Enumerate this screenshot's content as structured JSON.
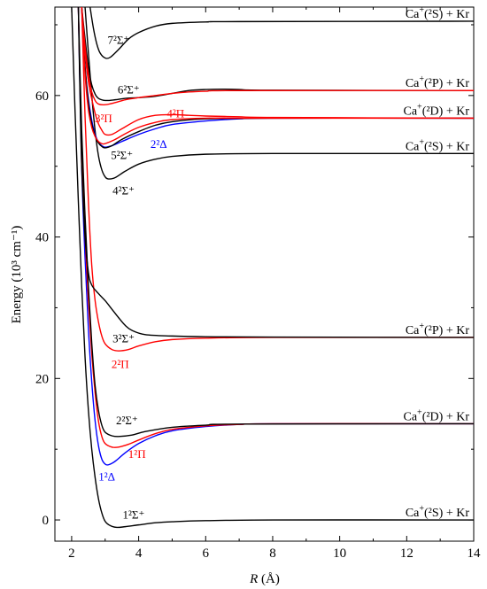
{
  "chart_data": {
    "type": "line",
    "xlabel_var": "R",
    "xlabel_unit": " (Å)",
    "ylabel": "Energy (10³ cm⁻¹)",
    "xlim": [
      1.5,
      14
    ],
    "ylim": [
      -3,
      72.5
    ],
    "xticks": [
      2,
      4,
      6,
      8,
      10,
      12,
      14
    ],
    "yticks": [
      0,
      20,
      40,
      60
    ],
    "colors": {
      "sigma": "#000000",
      "pi": "#ff0000",
      "delta": "#0000ff"
    },
    "asymptotes": [
      {
        "ion": "Ca",
        "state": "(²S) + Kr",
        "y": 0
      },
      {
        "ion": "Ca",
        "state": "(²D) + Kr",
        "y": 13.6
      },
      {
        "ion": "Ca",
        "state": "(²P) + Kr",
        "y": 25.8
      },
      {
        "ion": "Ca",
        "state": "(²S) + Kr",
        "y": 51.8
      },
      {
        "ion": "Ca",
        "state": "(²D) + Kr",
        "y": 56.8
      },
      {
        "ion": "Ca",
        "state": "(²P) + Kr",
        "y": 60.7
      },
      {
        "ion": "Ca",
        "state": "(²S) + Kr",
        "y": 70.5
      }
    ],
    "series": [
      {
        "name": "1²Σ⁺",
        "color": "sigma",
        "points": [
          [
            2.0,
            72.5
          ],
          [
            2.1,
            58
          ],
          [
            2.2,
            45
          ],
          [
            2.3,
            33
          ],
          [
            2.4,
            23
          ],
          [
            2.5,
            15.5
          ],
          [
            2.6,
            10
          ],
          [
            2.7,
            6
          ],
          [
            2.8,
            3
          ],
          [
            2.9,
            1
          ],
          [
            3.0,
            -0.2
          ],
          [
            3.15,
            -0.8
          ],
          [
            3.35,
            -1.05
          ],
          [
            3.6,
            -0.95
          ],
          [
            4,
            -0.7
          ],
          [
            4.5,
            -0.4
          ],
          [
            5,
            -0.25
          ],
          [
            6,
            -0.1
          ],
          [
            8,
            0
          ],
          [
            14,
            0
          ]
        ]
      },
      {
        "name": "1²Δ",
        "color": "delta",
        "points": [
          [
            2.2,
            72.5
          ],
          [
            2.3,
            50
          ],
          [
            2.4,
            37
          ],
          [
            2.5,
            27
          ],
          [
            2.6,
            19.5
          ],
          [
            2.7,
            14
          ],
          [
            2.8,
            10.5
          ],
          [
            2.9,
            8.6
          ],
          [
            3.0,
            7.9
          ],
          [
            3.1,
            7.8
          ],
          [
            3.3,
            8.3
          ],
          [
            3.6,
            9.5
          ],
          [
            4,
            10.8
          ],
          [
            4.5,
            11.9
          ],
          [
            5,
            12.6
          ],
          [
            6,
            13.2
          ],
          [
            7,
            13.5
          ],
          [
            8,
            13.6
          ],
          [
            14,
            13.6
          ]
        ]
      },
      {
        "name": "1²Π",
        "color": "pi",
        "points": [
          [
            2.2,
            72.5
          ],
          [
            2.3,
            52
          ],
          [
            2.4,
            40
          ],
          [
            2.5,
            31
          ],
          [
            2.6,
            23.5
          ],
          [
            2.7,
            18
          ],
          [
            2.8,
            14
          ],
          [
            2.9,
            11.8
          ],
          [
            3.0,
            10.8
          ],
          [
            3.2,
            10.3
          ],
          [
            3.4,
            10.3
          ],
          [
            3.7,
            10.7
          ],
          [
            4,
            11.3
          ],
          [
            4.5,
            12.2
          ],
          [
            5,
            12.8
          ],
          [
            6,
            13.3
          ],
          [
            7,
            13.5
          ],
          [
            8,
            13.6
          ],
          [
            14,
            13.6
          ]
        ]
      },
      {
        "name": "2²Σ⁺",
        "color": "sigma",
        "points": [
          [
            2.2,
            72.5
          ],
          [
            2.3,
            55
          ],
          [
            2.4,
            43
          ],
          [
            2.5,
            33
          ],
          [
            2.6,
            25
          ],
          [
            2.7,
            19
          ],
          [
            2.8,
            15.5
          ],
          [
            2.9,
            13.4
          ],
          [
            3.0,
            12.4
          ],
          [
            3.2,
            11.9
          ],
          [
            3.4,
            11.8
          ],
          [
            3.8,
            12
          ],
          [
            4.2,
            12.5
          ],
          [
            5,
            13.1
          ],
          [
            6,
            13.4
          ],
          [
            7,
            13.55
          ],
          [
            14,
            13.6
          ]
        ]
      },
      {
        "name": "2²Π",
        "color": "pi",
        "points": [
          [
            2.3,
            72.5
          ],
          [
            2.4,
            57
          ],
          [
            2.5,
            45
          ],
          [
            2.6,
            36
          ],
          [
            2.7,
            31
          ],
          [
            2.8,
            28
          ],
          [
            2.9,
            26
          ],
          [
            3.0,
            24.9
          ],
          [
            3.2,
            24.1
          ],
          [
            3.4,
            23.9
          ],
          [
            3.7,
            24.1
          ],
          [
            4,
            24.6
          ],
          [
            4.5,
            25.2
          ],
          [
            5,
            25.5
          ],
          [
            6,
            25.7
          ],
          [
            8,
            25.8
          ],
          [
            14,
            25.8
          ]
        ]
      },
      {
        "name": "3²Σ⁺",
        "color": "sigma",
        "points": [
          [
            2.2,
            72.5
          ],
          [
            2.25,
            60
          ],
          [
            2.3,
            50
          ],
          [
            2.4,
            40
          ],
          [
            2.5,
            35
          ],
          [
            2.6,
            33.2
          ],
          [
            2.8,
            32
          ],
          [
            3.0,
            31
          ],
          [
            3.2,
            29.8
          ],
          [
            3.4,
            28.6
          ],
          [
            3.6,
            27.5
          ],
          [
            3.8,
            26.8
          ],
          [
            4.2,
            26.2
          ],
          [
            5,
            26
          ],
          [
            6,
            25.9
          ],
          [
            8,
            25.85
          ],
          [
            14,
            25.8
          ]
        ]
      },
      {
        "name": "4²Σ⁺",
        "color": "sigma",
        "points": [
          [
            2.4,
            72.5
          ],
          [
            2.5,
            66
          ],
          [
            2.6,
            60
          ],
          [
            2.7,
            55
          ],
          [
            2.8,
            51.5
          ],
          [
            2.9,
            49.5
          ],
          [
            3.0,
            48.5
          ],
          [
            3.1,
            48.2
          ],
          [
            3.3,
            48.4
          ],
          [
            3.6,
            49.3
          ],
          [
            4,
            50.3
          ],
          [
            4.5,
            51
          ],
          [
            5,
            51.4
          ],
          [
            6,
            51.7
          ],
          [
            8,
            51.8
          ],
          [
            14,
            51.8
          ]
        ]
      },
      {
        "name": "2²Δ",
        "color": "delta",
        "points": [
          [
            2.3,
            72.5
          ],
          [
            2.4,
            64
          ],
          [
            2.5,
            59.5
          ],
          [
            2.6,
            56.5
          ],
          [
            2.7,
            54.5
          ],
          [
            2.8,
            53.4
          ],
          [
            2.9,
            52.9
          ],
          [
            3.0,
            52.7
          ],
          [
            3.2,
            52.9
          ],
          [
            3.5,
            53.5
          ],
          [
            4,
            54.5
          ],
          [
            4.5,
            55.3
          ],
          [
            5,
            55.9
          ],
          [
            6,
            56.4
          ],
          [
            7,
            56.7
          ],
          [
            8,
            56.8
          ],
          [
            14,
            56.8
          ]
        ]
      },
      {
        "name": "5²Σ⁺",
        "color": "sigma",
        "points": [
          [
            2.3,
            72.5
          ],
          [
            2.4,
            64
          ],
          [
            2.5,
            59
          ],
          [
            2.6,
            56
          ],
          [
            2.7,
            54.3
          ],
          [
            2.8,
            53.3
          ],
          [
            2.9,
            52.8
          ],
          [
            3.0,
            52.6
          ],
          [
            3.2,
            52.9
          ],
          [
            3.5,
            53.8
          ],
          [
            4,
            54.9
          ],
          [
            4.5,
            55.8
          ],
          [
            5,
            56.3
          ],
          [
            6,
            56.7
          ],
          [
            8,
            56.8
          ],
          [
            14,
            56.8
          ]
        ]
      },
      {
        "name": "3²Π",
        "color": "pi",
        "points": [
          [
            2.3,
            72.5
          ],
          [
            2.4,
            63
          ],
          [
            2.5,
            58
          ],
          [
            2.6,
            55.5
          ],
          [
            2.7,
            54.2
          ],
          [
            2.8,
            53.5
          ],
          [
            2.9,
            53.2
          ],
          [
            3.0,
            53.2
          ],
          [
            3.3,
            53.8
          ],
          [
            3.6,
            54.6
          ],
          [
            4,
            55.5
          ],
          [
            4.5,
            56.2
          ],
          [
            5,
            56.6
          ],
          [
            6,
            56.8
          ],
          [
            7,
            56.8
          ],
          [
            14,
            56.8
          ]
        ]
      },
      {
        "name": "4²Π",
        "color": "pi",
        "points": [
          [
            2.3,
            72.5
          ],
          [
            2.4,
            66
          ],
          [
            2.5,
            62
          ],
          [
            2.6,
            59.5
          ],
          [
            2.7,
            57.5
          ],
          [
            2.8,
            56
          ],
          [
            2.9,
            55.1
          ],
          [
            3.0,
            54.5
          ],
          [
            3.2,
            54.5
          ],
          [
            3.5,
            55.3
          ],
          [
            4,
            56.6
          ],
          [
            4.5,
            57.2
          ],
          [
            5,
            57.3
          ],
          [
            5.5,
            57.2
          ],
          [
            6,
            57.1
          ],
          [
            7,
            57
          ],
          [
            8,
            56.9
          ],
          [
            14,
            56.8
          ]
        ]
      },
      {
        "name": "6²Σ⁺",
        "color": "sigma",
        "points": [
          [
            2.3,
            72.5
          ],
          [
            2.4,
            68
          ],
          [
            2.5,
            64
          ],
          [
            2.6,
            61.5
          ],
          [
            2.7,
            60.2
          ],
          [
            2.8,
            59.6
          ],
          [
            3.0,
            59.3
          ],
          [
            3.3,
            59.4
          ],
          [
            3.6,
            59.6
          ],
          [
            4,
            59.7
          ],
          [
            4.5,
            59.9
          ],
          [
            5,
            60.3
          ],
          [
            5.5,
            60.7
          ],
          [
            6,
            60.85
          ],
          [
            6.5,
            60.9
          ],
          [
            7,
            60.85
          ],
          [
            8,
            60.75
          ],
          [
            14,
            60.7
          ]
        ]
      },
      {
        "name": "_pi6",
        "color": "pi",
        "points": [
          [
            2.3,
            72.5
          ],
          [
            2.4,
            67
          ],
          [
            2.5,
            63
          ],
          [
            2.6,
            60.5
          ],
          [
            2.7,
            59.3
          ],
          [
            2.8,
            58.8
          ],
          [
            3.0,
            58.7
          ],
          [
            3.3,
            59
          ],
          [
            3.6,
            59.4
          ],
          [
            4,
            59.7
          ],
          [
            4.5,
            60
          ],
          [
            5,
            60.3
          ],
          [
            5.5,
            60.5
          ],
          [
            6,
            60.6
          ],
          [
            7,
            60.7
          ],
          [
            14,
            60.7
          ]
        ]
      },
      {
        "name": "7²Σ⁺",
        "color": "sigma",
        "points": [
          [
            2.55,
            72.5
          ],
          [
            2.65,
            69.5
          ],
          [
            2.75,
            67.3
          ],
          [
            2.85,
            66
          ],
          [
            3.0,
            65.3
          ],
          [
            3.15,
            65.4
          ],
          [
            3.4,
            66.5
          ],
          [
            3.7,
            68
          ],
          [
            4,
            68.9
          ],
          [
            4.5,
            69.8
          ],
          [
            5,
            70.2
          ],
          [
            6,
            70.4
          ],
          [
            7,
            70.45
          ],
          [
            14,
            70.5
          ]
        ]
      }
    ],
    "labels": [
      {
        "text": "1²Σ⁺",
        "color": "sigma",
        "x": 3.85,
        "y": 0.2
      },
      {
        "text": "1²Δ",
        "color": "delta",
        "x": 3.05,
        "y": 5.6
      },
      {
        "text": "1²Π",
        "color": "pi",
        "x": 3.95,
        "y": 8.8
      },
      {
        "text": "2²Σ⁺",
        "color": "sigma",
        "x": 3.65,
        "y": 13.5
      },
      {
        "text": "2²Π",
        "color": "pi",
        "x": 3.45,
        "y": 21.5
      },
      {
        "text": "3²Σ⁺",
        "color": "sigma",
        "x": 3.55,
        "y": 25.1
      },
      {
        "text": "4²Σ⁺",
        "color": "sigma",
        "x": 3.55,
        "y": 46.0
      },
      {
        "text": "5²Σ⁺",
        "color": "sigma",
        "x": 3.5,
        "y": 51.0
      },
      {
        "text": "2²Δ",
        "color": "delta",
        "x": 4.6,
        "y": 52.6
      },
      {
        "text": "3²Π",
        "color": "pi",
        "x": 2.95,
        "y": 56.2
      },
      {
        "text": "4²Π",
        "color": "pi",
        "x": 5.1,
        "y": 56.9
      },
      {
        "text": "6²Σ⁺",
        "color": "sigma",
        "x": 3.7,
        "y": 60.3
      },
      {
        "text": "7²Σ⁺",
        "color": "sigma",
        "x": 3.4,
        "y": 67.3
      }
    ]
  }
}
